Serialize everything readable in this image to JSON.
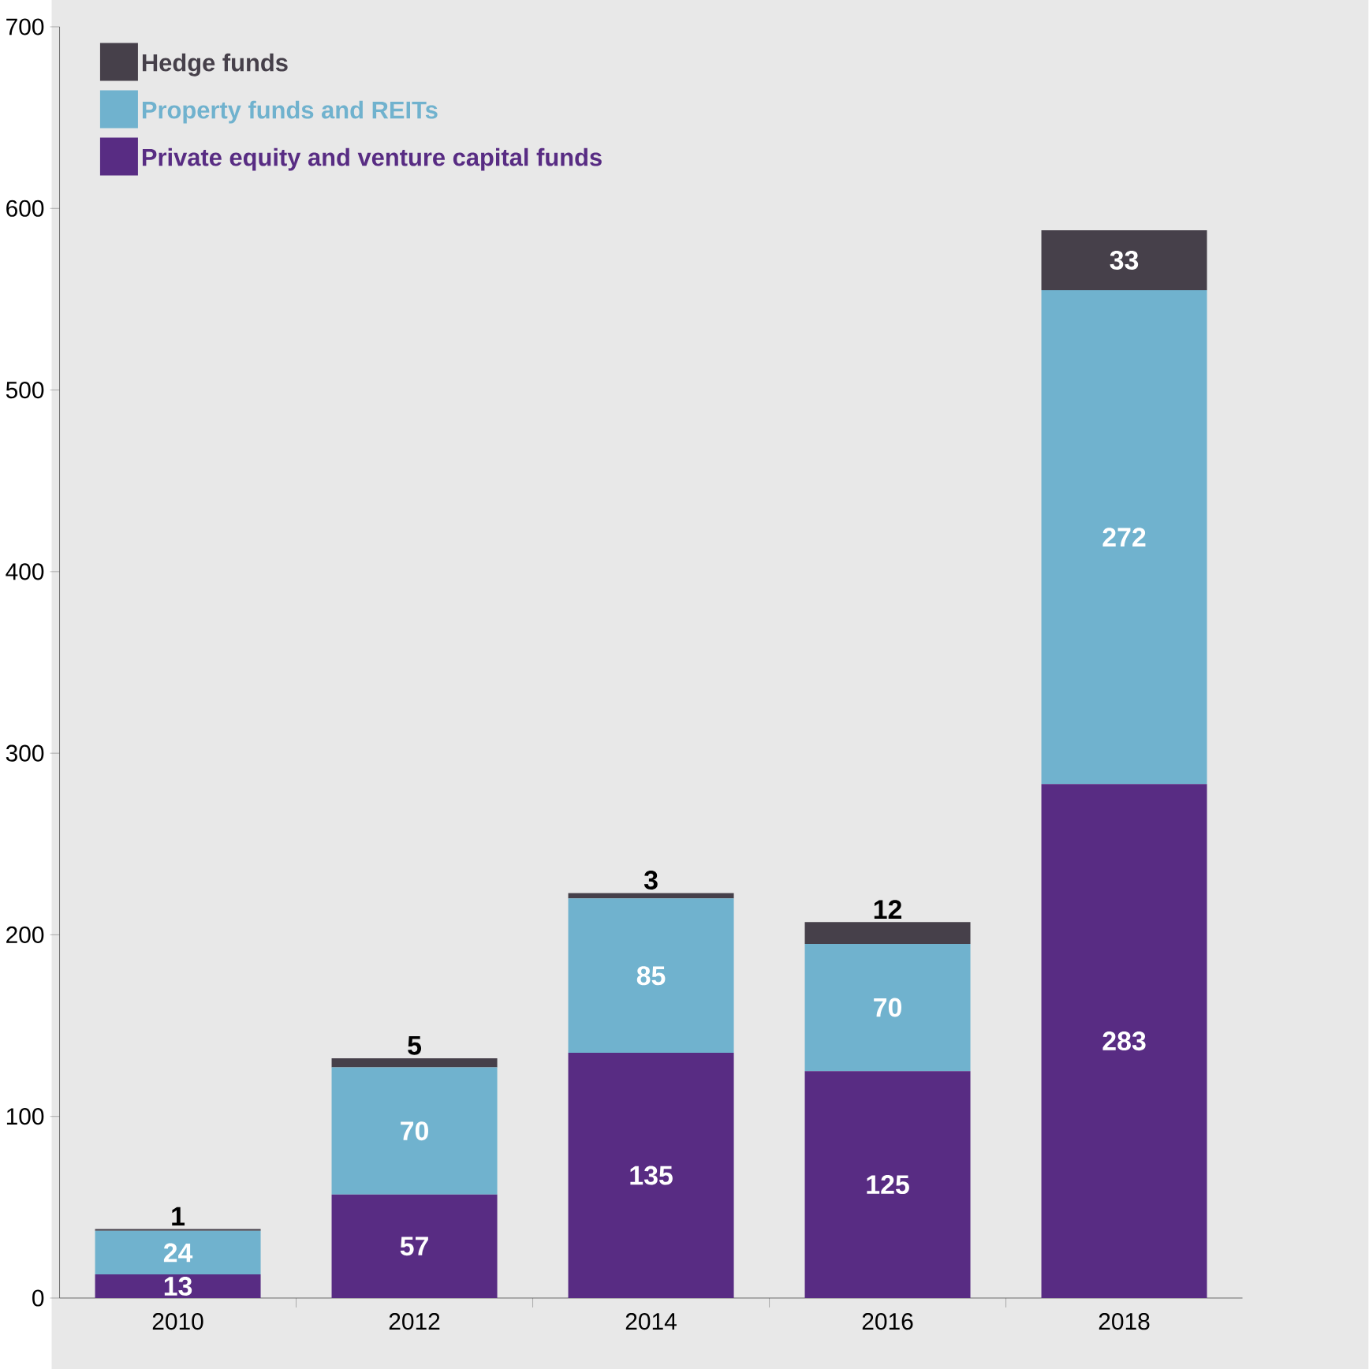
{
  "chart_data": {
    "type": "bar",
    "stacked": true,
    "categories": [
      "2010",
      "2012",
      "2014",
      "2016",
      "2018"
    ],
    "series": [
      {
        "name": "Private equity and venture capital funds",
        "color": "#582c83",
        "values": [
          13,
          57,
          135,
          125,
          283
        ]
      },
      {
        "name": "Property funds and REITs",
        "color": "#70b2ce",
        "values": [
          24,
          70,
          85,
          70,
          272
        ]
      },
      {
        "name": "Hedge funds",
        "color": "#46404a",
        "values": [
          1,
          5,
          3,
          12,
          33
        ]
      }
    ],
    "ylim": [
      0,
      700
    ],
    "yticks": [
      0,
      100,
      200,
      300,
      400,
      500,
      600,
      700
    ],
    "data_labels": true,
    "legend": "top left",
    "grid": false
  }
}
